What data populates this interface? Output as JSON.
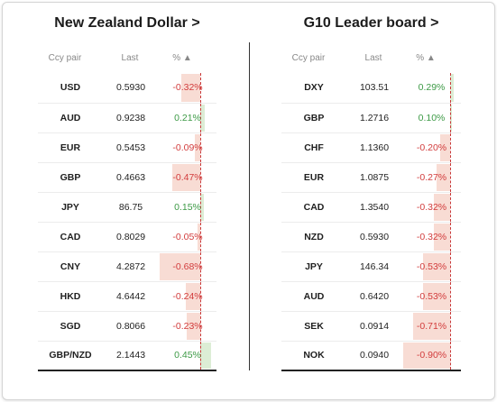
{
  "left": {
    "title": "New Zealand Dollar >",
    "headers": {
      "pair": "Ccy pair",
      "last": "Last",
      "pct": "% ▲"
    },
    "rows": [
      {
        "pair": "USD",
        "last": "0.5930",
        "pct": "-0.32%",
        "value": -0.32
      },
      {
        "pair": "AUD",
        "last": "0.9238",
        "pct": "0.21%",
        "value": 0.21
      },
      {
        "pair": "EUR",
        "last": "0.5453",
        "pct": "-0.09%",
        "value": -0.09
      },
      {
        "pair": "GBP",
        "last": "0.4663",
        "pct": "-0.47%",
        "value": -0.47
      },
      {
        "pair": "JPY",
        "last": "86.75",
        "pct": "0.15%",
        "value": 0.15
      },
      {
        "pair": "CAD",
        "last": "0.8029",
        "pct": "-0.05%",
        "value": -0.05
      },
      {
        "pair": "CNY",
        "last": "4.2872",
        "pct": "-0.68%",
        "value": -0.68
      },
      {
        "pair": "HKD",
        "last": "4.6442",
        "pct": "-0.24%",
        "value": -0.24
      },
      {
        "pair": "SGD",
        "last": "0.8066",
        "pct": "-0.23%",
        "value": -0.23
      },
      {
        "pair": "GBP/NZD",
        "last": "2.1443",
        "pct": "0.45%",
        "value": 0.45
      }
    ]
  },
  "right": {
    "title": "G10 Leader board >",
    "headers": {
      "pair": "Ccy pair",
      "last": "Last",
      "pct": "% ▲"
    },
    "rows": [
      {
        "pair": "DXY",
        "last": "103.51",
        "pct": "0.29%",
        "value": 0.29
      },
      {
        "pair": "GBP",
        "last": "1.2716",
        "pct": "0.10%",
        "value": 0.1
      },
      {
        "pair": "CHF",
        "last": "1.1360",
        "pct": "-0.20%",
        "value": -0.2
      },
      {
        "pair": "EUR",
        "last": "1.0875",
        "pct": "-0.27%",
        "value": -0.27
      },
      {
        "pair": "CAD",
        "last": "1.3540",
        "pct": "-0.32%",
        "value": -0.32
      },
      {
        "pair": "NZD",
        "last": "0.5930",
        "pct": "-0.32%",
        "value": -0.32
      },
      {
        "pair": "JPY",
        "last": "146.34",
        "pct": "-0.53%",
        "value": -0.53
      },
      {
        "pair": "AUD",
        "last": "0.6420",
        "pct": "-0.53%",
        "value": -0.53
      },
      {
        "pair": "SEK",
        "last": "0.0914",
        "pct": "-0.71%",
        "value": -0.71
      },
      {
        "pair": "NOK",
        "last": "0.0940",
        "pct": "-0.90%",
        "value": -0.9
      }
    ]
  },
  "colors": {
    "positive_text": "#3d9a46",
    "negative_text": "#d23c3c",
    "positive_bar": "#dcedd5",
    "negative_bar": "#f8dcd4"
  }
}
